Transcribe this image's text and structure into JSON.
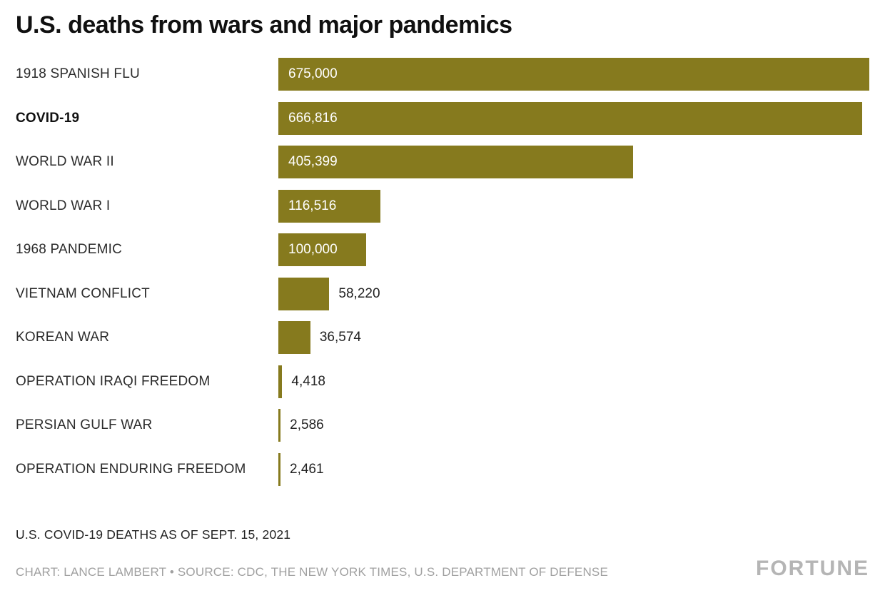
{
  "chart_data": {
    "type": "bar",
    "orientation": "horizontal",
    "title": "U.S. deaths from wars and major pandemics",
    "xlabel": "",
    "ylabel": "",
    "xlim": [
      0,
      675000
    ],
    "grid": false,
    "legend": "none",
    "bar_color": "#867a1e",
    "categories": [
      "1918 SPANISH FLU",
      "COVID-19",
      "WORLD WAR II",
      "WORLD WAR I",
      "1968 PANDEMIC",
      "VIETNAM CONFLICT",
      "KOREAN WAR",
      "OPERATION IRAQI FREEDOM",
      "PERSIAN GULF WAR",
      "OPERATION ENDURING FREEDOM"
    ],
    "values": [
      675000,
      666816,
      405399,
      116516,
      100000,
      58220,
      36574,
      4418,
      2586,
      2461
    ],
    "rows": [
      {
        "label": "1918 SPANISH FLU",
        "value": 675000,
        "display": "675,000",
        "bold": false
      },
      {
        "label": "COVID-19",
        "value": 666816,
        "display": "666,816",
        "bold": true
      },
      {
        "label": "WORLD WAR II",
        "value": 405399,
        "display": "405,399",
        "bold": false
      },
      {
        "label": "WORLD WAR I",
        "value": 116516,
        "display": "116,516",
        "bold": false
      },
      {
        "label": "1968 PANDEMIC",
        "value": 100000,
        "display": "100,000",
        "bold": false
      },
      {
        "label": "VIETNAM CONFLICT",
        "value": 58220,
        "display": "58,220",
        "bold": false
      },
      {
        "label": "KOREAN WAR",
        "value": 36574,
        "display": "36,574",
        "bold": false
      },
      {
        "label": "OPERATION IRAQI FREEDOM",
        "value": 4418,
        "display": "4,418",
        "bold": false
      },
      {
        "label": "PERSIAN GULF WAR",
        "value": 2586,
        "display": "2,586",
        "bold": false
      },
      {
        "label": "OPERATION ENDURING FREEDOM",
        "value": 2461,
        "display": "2,461",
        "bold": false
      }
    ]
  },
  "footer": {
    "note": "U.S. COVID-19 DEATHS AS OF SEPT. 15, 2021",
    "credit": "CHART: LANCE LAMBERT • SOURCE: CDC, THE NEW YORK TIMES, U.S. DEPARTMENT OF DEFENSE",
    "logo": "FORTUNE"
  }
}
